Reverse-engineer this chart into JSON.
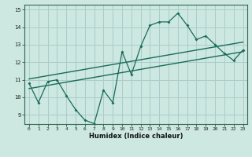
{
  "title": "",
  "xlabel": "Humidex (Indice chaleur)",
  "ylabel": "",
  "bg_color": "#cce8e0",
  "grid_color": "#aacccc",
  "line_color": "#1a6b5a",
  "xlim": [
    -0.5,
    23.5
  ],
  "ylim": [
    8.5,
    15.3
  ],
  "xticks": [
    0,
    1,
    2,
    3,
    4,
    5,
    6,
    7,
    8,
    9,
    10,
    11,
    12,
    13,
    14,
    15,
    16,
    17,
    18,
    19,
    20,
    21,
    22,
    23
  ],
  "yticks": [
    9,
    10,
    11,
    12,
    13,
    14,
    15
  ],
  "data_x": [
    0,
    1,
    2,
    3,
    4,
    5,
    6,
    7,
    8,
    9,
    10,
    11,
    12,
    13,
    14,
    15,
    16,
    17,
    18,
    19,
    20,
    21,
    22,
    23
  ],
  "data_y": [
    10.8,
    9.7,
    10.9,
    11.0,
    10.1,
    9.3,
    8.7,
    8.5,
    10.4,
    9.7,
    12.6,
    11.3,
    12.9,
    14.1,
    14.3,
    14.3,
    14.8,
    14.1,
    13.3,
    13.5,
    13.0,
    12.5,
    12.1,
    12.7
  ],
  "trend1_x": [
    0,
    23
  ],
  "trend1_y": [
    10.5,
    12.6
  ],
  "trend2_x": [
    0,
    23
  ],
  "trend2_y": [
    11.05,
    13.15
  ]
}
